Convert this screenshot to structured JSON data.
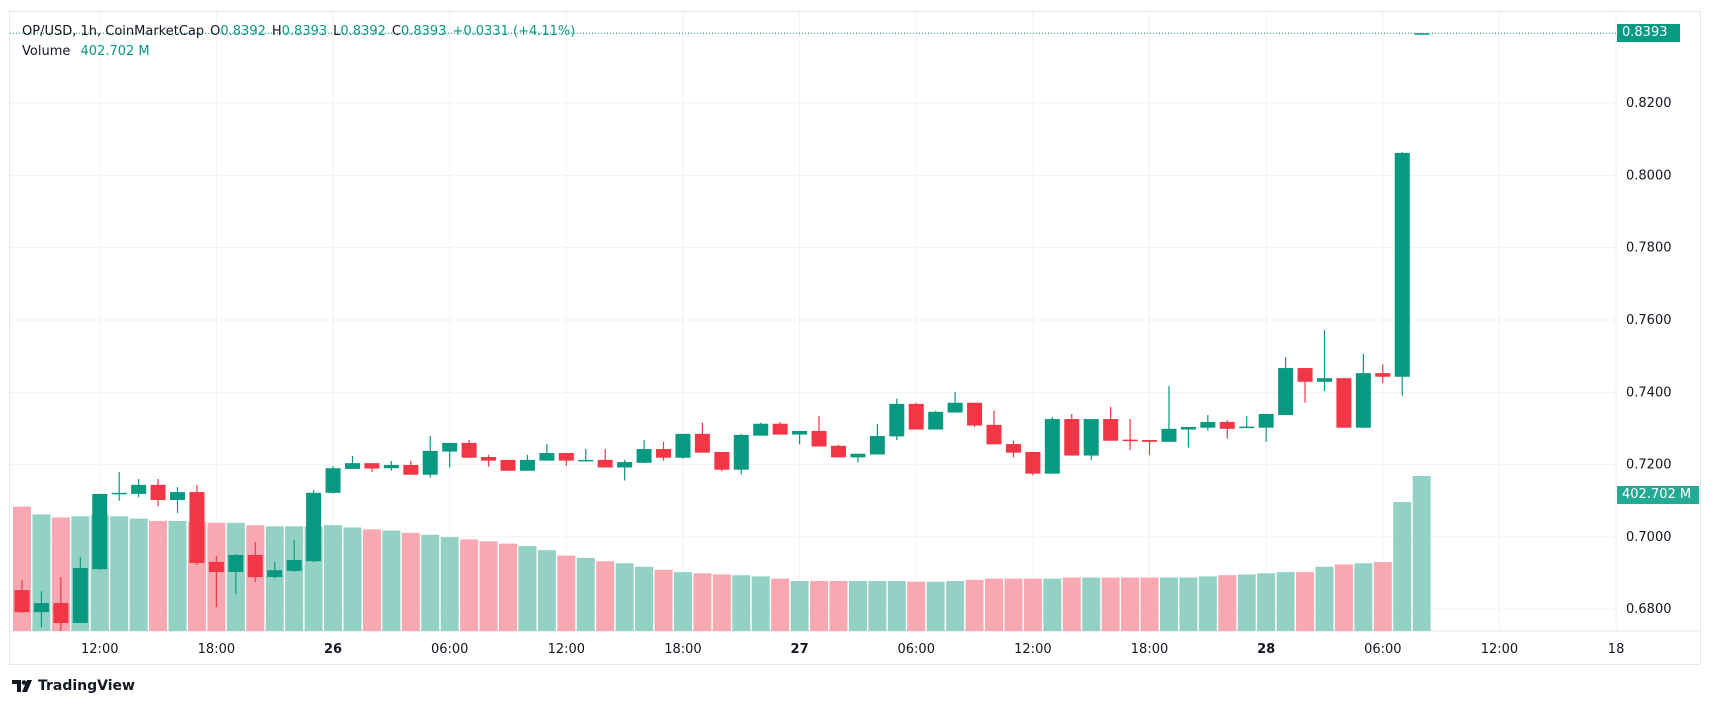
{
  "header": {
    "symbol": "OP/USD, 1h, CoinMarketCap",
    "o_label": "O",
    "o_value": "0.8392",
    "h_label": "H",
    "h_value": "0.8393",
    "l_label": "L",
    "l_value": "0.8392",
    "c_label": "C",
    "c_value": "0.8393",
    "change": "+0.0331 (+4.11%)",
    "volume_label": "Volume",
    "volume_value": "402.702 M"
  },
  "price_tag": "0.8393",
  "volume_tag": "402.702 M",
  "branding": "TradingView",
  "colors": {
    "up": "#089981",
    "down": "#f23645",
    "vol_up": "#93d1c5",
    "vol_down": "#f7a8b0",
    "grid": "#f0f1f3"
  },
  "chart_data": {
    "type": "candlestick",
    "title": "OP/USD, 1h, CoinMarketCap",
    "ylim": [
      0.6745,
      0.8413
    ],
    "y_ticks": [
      "0.8200",
      "0.8000",
      "0.7800",
      "0.7600",
      "0.7400",
      "0.7200",
      "0.7000",
      "0.6800"
    ],
    "x_ticks": [
      {
        "label": "12:00",
        "hour": 4
      },
      {
        "label": "18:00",
        "hour": 10
      },
      {
        "label": "26",
        "hour": 16,
        "bold": true
      },
      {
        "label": "06:00",
        "hour": 22
      },
      {
        "label": "12:00",
        "hour": 28
      },
      {
        "label": "18:00",
        "hour": 34
      },
      {
        "label": "27",
        "hour": 40,
        "bold": true
      },
      {
        "label": "06:00",
        "hour": 46
      },
      {
        "label": "12:00",
        "hour": 52
      },
      {
        "label": "18:00",
        "hour": 58
      },
      {
        "label": "28",
        "hour": 64,
        "bold": true
      },
      {
        "label": "06:00",
        "hour": 70
      },
      {
        "label": "12:00",
        "hour": 76
      },
      {
        "label": "18",
        "hour": 82
      }
    ],
    "candles_ohlcv_millions": [
      [
        0.6853,
        0.6881,
        0.679,
        0.6792,
        323
      ],
      [
        0.6792,
        0.685,
        0.675,
        0.6817,
        303
      ],
      [
        0.6817,
        0.6889,
        0.674,
        0.6762,
        295
      ],
      [
        0.6762,
        0.6944,
        0.6762,
        0.6914,
        298
      ],
      [
        0.6911,
        0.7119,
        0.6908,
        0.7119,
        301
      ],
      [
        0.712,
        0.718,
        0.71,
        0.7122,
        298
      ],
      [
        0.7119,
        0.716,
        0.711,
        0.7144,
        292
      ],
      [
        0.7144,
        0.716,
        0.7085,
        0.7102,
        286
      ],
      [
        0.7102,
        0.7138,
        0.7066,
        0.7124,
        286
      ],
      [
        0.7124,
        0.7144,
        0.6922,
        0.6928,
        284
      ],
      [
        0.6931,
        0.6947,
        0.6806,
        0.6903,
        281
      ],
      [
        0.6903,
        0.6953,
        0.6842,
        0.695,
        281
      ],
      [
        0.695,
        0.6986,
        0.6875,
        0.6889,
        275
      ],
      [
        0.6889,
        0.6931,
        0.6886,
        0.6908,
        272
      ],
      [
        0.6906,
        0.6991,
        0.6903,
        0.6936,
        272
      ],
      [
        0.6933,
        0.713,
        0.693,
        0.7122,
        272
      ],
      [
        0.7122,
        0.7196,
        0.712,
        0.719,
        275
      ],
      [
        0.7188,
        0.7224,
        0.7188,
        0.7204,
        269
      ],
      [
        0.7204,
        0.7204,
        0.718,
        0.7189,
        264
      ],
      [
        0.719,
        0.721,
        0.7183,
        0.7199,
        261
      ],
      [
        0.7199,
        0.721,
        0.7172,
        0.7172,
        255
      ],
      [
        0.7172,
        0.7279,
        0.7164,
        0.7238,
        250
      ],
      [
        0.7236,
        0.726,
        0.7192,
        0.726,
        244
      ],
      [
        0.726,
        0.7268,
        0.7219,
        0.7219,
        238
      ],
      [
        0.7221,
        0.7227,
        0.7194,
        0.7211,
        233
      ],
      [
        0.7213,
        0.7213,
        0.7183,
        0.7183,
        227
      ],
      [
        0.7183,
        0.7227,
        0.7183,
        0.7213,
        221
      ],
      [
        0.7211,
        0.7257,
        0.7211,
        0.7232,
        210
      ],
      [
        0.7232,
        0.7232,
        0.7197,
        0.7211,
        196
      ],
      [
        0.7211,
        0.7243,
        0.7211,
        0.7213,
        190
      ],
      [
        0.7213,
        0.7243,
        0.7192,
        0.7192,
        181
      ],
      [
        0.7192,
        0.7213,
        0.7156,
        0.7207,
        176
      ],
      [
        0.7205,
        0.7268,
        0.7204,
        0.7243,
        167
      ],
      [
        0.7243,
        0.7263,
        0.7211,
        0.7219,
        159
      ],
      [
        0.7219,
        0.7285,
        0.7216,
        0.7285,
        153
      ],
      [
        0.7285,
        0.7316,
        0.7233,
        0.7233,
        150
      ],
      [
        0.7235,
        0.7235,
        0.7181,
        0.7186,
        147
      ],
      [
        0.7186,
        0.7285,
        0.7173,
        0.7282,
        145
      ],
      [
        0.728,
        0.7316,
        0.728,
        0.7313,
        142
      ],
      [
        0.7313,
        0.7318,
        0.7283,
        0.7283,
        136
      ],
      [
        0.7283,
        0.7293,
        0.7256,
        0.7293,
        130
      ],
      [
        0.7293,
        0.7335,
        0.725,
        0.725,
        130
      ],
      [
        0.7252,
        0.7255,
        0.722,
        0.722,
        130
      ],
      [
        0.722,
        0.723,
        0.7206,
        0.723,
        130
      ],
      [
        0.7228,
        0.7313,
        0.7228,
        0.7279,
        130
      ],
      [
        0.7278,
        0.7382,
        0.7268,
        0.7368,
        130
      ],
      [
        0.7368,
        0.7371,
        0.7297,
        0.7297,
        128
      ],
      [
        0.7297,
        0.7349,
        0.7297,
        0.7346,
        128
      ],
      [
        0.7344,
        0.7401,
        0.7344,
        0.7371,
        130
      ],
      [
        0.7371,
        0.7371,
        0.7303,
        0.7308,
        133
      ],
      [
        0.731,
        0.7349,
        0.7256,
        0.7256,
        136
      ],
      [
        0.7257,
        0.7266,
        0.722,
        0.7233,
        136
      ],
      [
        0.7235,
        0.7235,
        0.717,
        0.7175,
        136
      ],
      [
        0.7175,
        0.7332,
        0.7175,
        0.7326,
        136
      ],
      [
        0.7326,
        0.734,
        0.7225,
        0.7225,
        139
      ],
      [
        0.7225,
        0.7326,
        0.7213,
        0.7326,
        139
      ],
      [
        0.7326,
        0.736,
        0.7266,
        0.7266,
        139
      ],
      [
        0.7269,
        0.7326,
        0.724,
        0.7266,
        139
      ],
      [
        0.7268,
        0.7268,
        0.7227,
        0.7263,
        139
      ],
      [
        0.7263,
        0.7417,
        0.7263,
        0.7299,
        139
      ],
      [
        0.7297,
        0.7304,
        0.7247,
        0.7304,
        139
      ],
      [
        0.7302,
        0.7337,
        0.7294,
        0.7318,
        142
      ],
      [
        0.7318,
        0.7323,
        0.7272,
        0.7299,
        145
      ],
      [
        0.7303,
        0.7334,
        0.7303,
        0.7305,
        147
      ],
      [
        0.7302,
        0.734,
        0.7263,
        0.734,
        150
      ],
      [
        0.7337,
        0.7497,
        0.7337,
        0.7467,
        153
      ],
      [
        0.7467,
        0.7467,
        0.7371,
        0.7429,
        153
      ],
      [
        0.7429,
        0.7572,
        0.7404,
        0.7439,
        167
      ],
      [
        0.7439,
        0.7439,
        0.7302,
        0.7302,
        173
      ],
      [
        0.7302,
        0.7506,
        0.7302,
        0.7453,
        176
      ],
      [
        0.7453,
        0.7477,
        0.7425,
        0.7443,
        179
      ],
      [
        0.7443,
        0.8064,
        0.7391,
        0.8062,
        335
      ],
      [
        0.8392,
        0.8393,
        0.8392,
        0.8393,
        402.702
      ]
    ],
    "candle_fields": [
      "open",
      "high",
      "low",
      "close",
      "volume_M"
    ],
    "volume_max_M": 402.702,
    "last_price": 0.8393
  }
}
